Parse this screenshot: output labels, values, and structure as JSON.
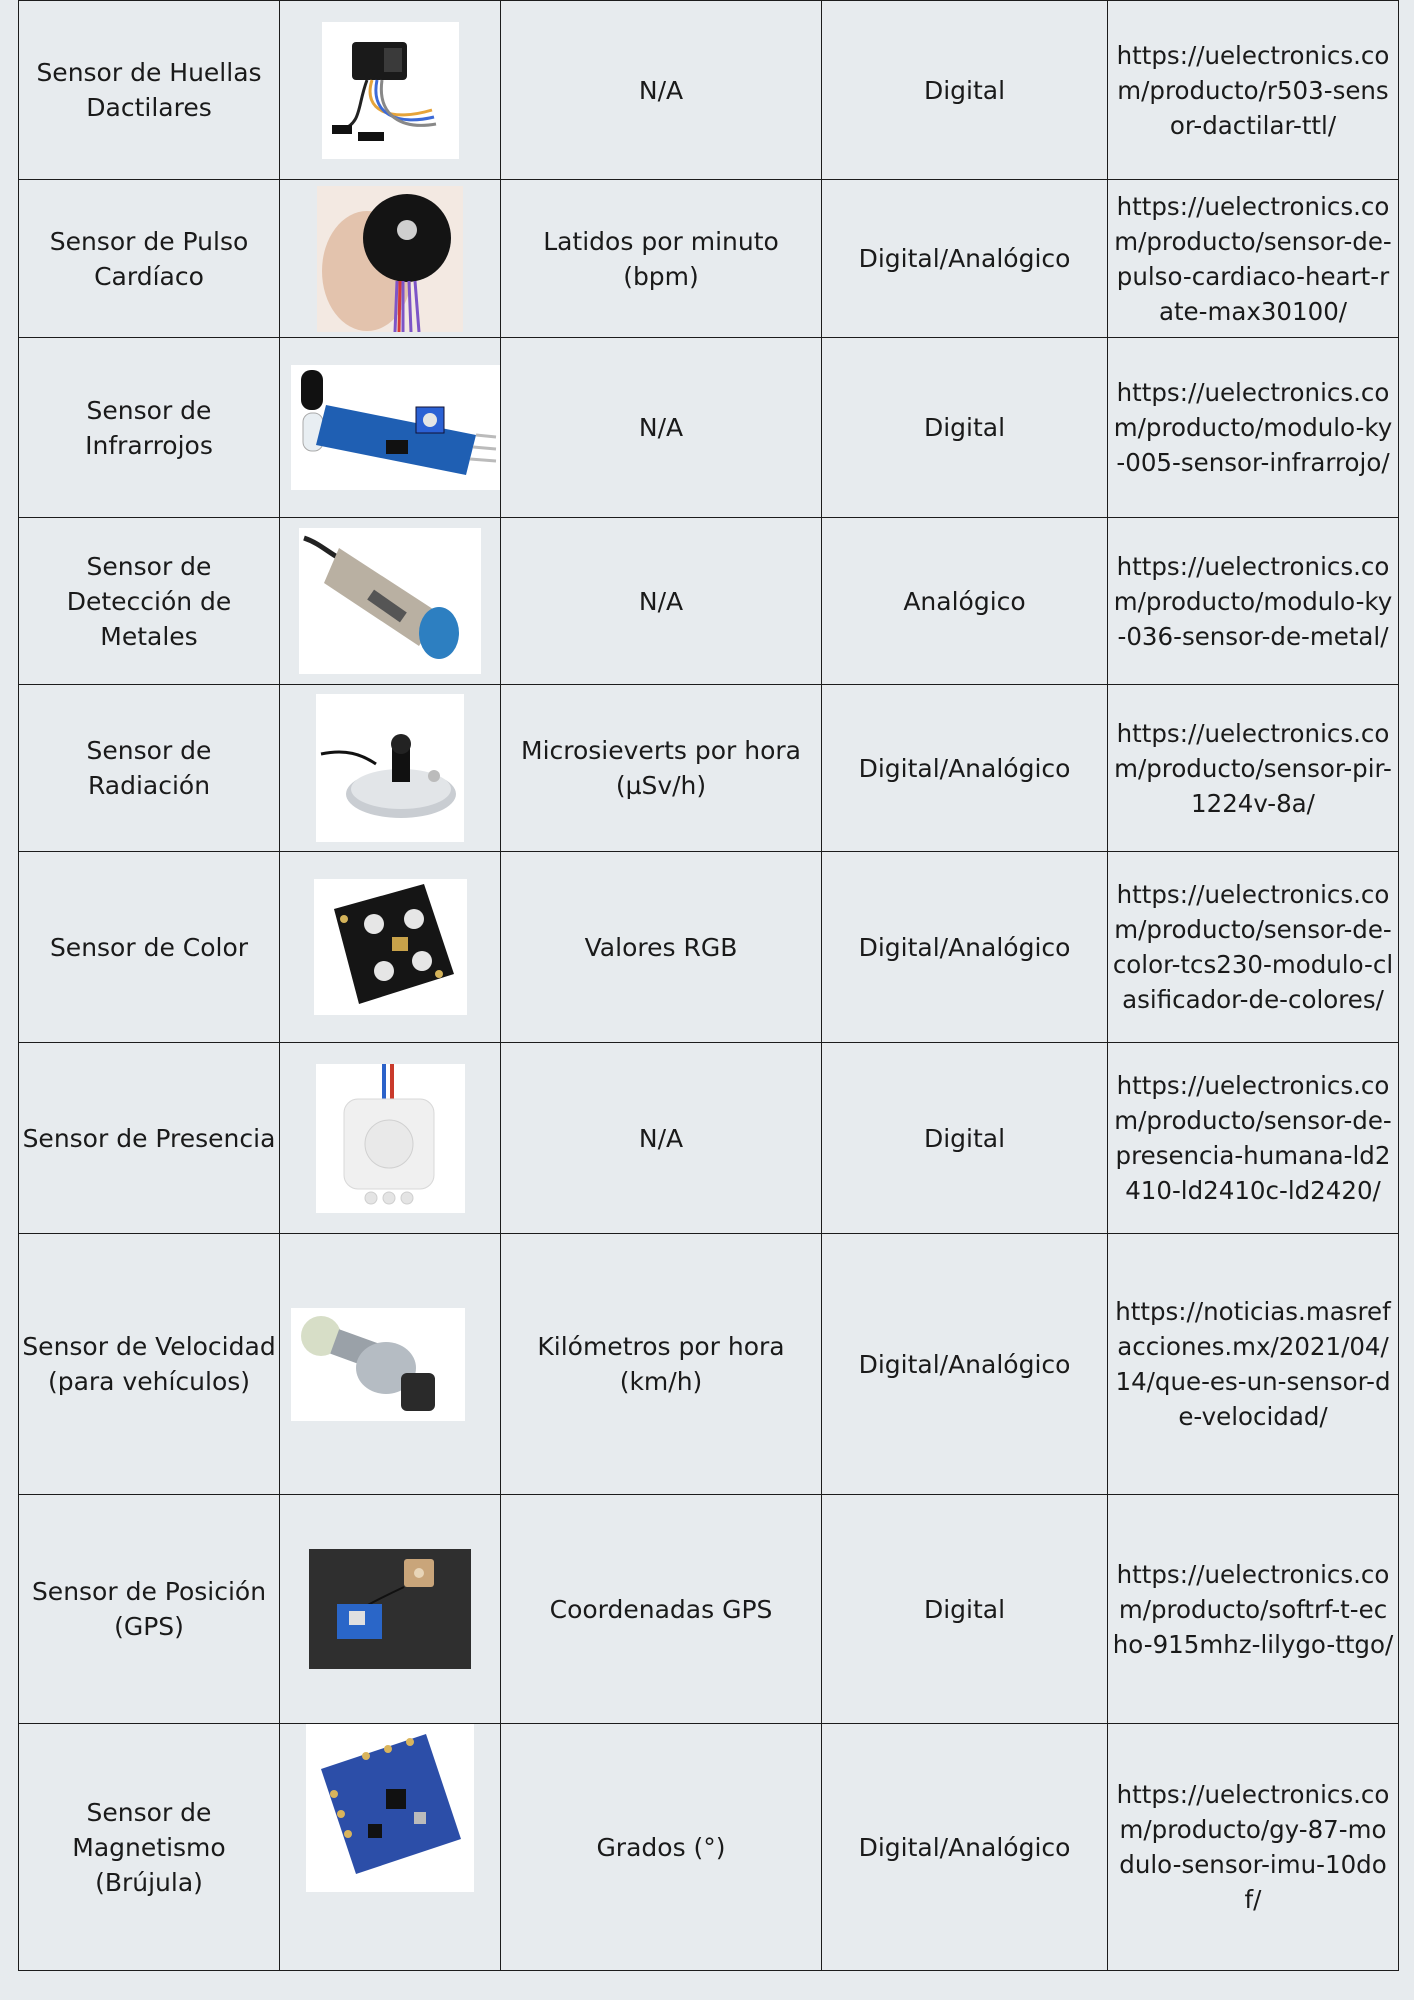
{
  "rows": [
    {
      "sensor": "Sensor de Huellas Dactilares",
      "image": "fingerprint-sensor-image",
      "unit": "N/A",
      "signal": "Digital",
      "url": "https://uelectronics.com/producto/r503-sensor-dactilar-ttl/"
    },
    {
      "sensor": "Sensor de Pulso Cardíaco",
      "image": "pulse-sensor-image",
      "unit": "Latidos por minuto (bpm)",
      "signal": "Digital/Analógico",
      "url": "https://uelectronics.com/producto/sensor-de-pulso-cardiaco-heart-rate-max30100/"
    },
    {
      "sensor": "Sensor de Infrarrojos",
      "image": "infrared-sensor-image",
      "unit": "N/A",
      "signal": "Digital",
      "url": "https://uelectronics.com/producto/modulo-ky-005-sensor-infrarrojo/"
    },
    {
      "sensor": "Sensor de Detección de Metales",
      "image": "metal-detection-sensor-image",
      "unit": "N/A",
      "signal": "Analógico",
      "url": "https://uelectronics.com/producto/modulo-ky-036-sensor-de-metal/"
    },
    {
      "sensor": "Sensor de Radiación",
      "image": "radiation-sensor-image",
      "unit": "Microsieverts por hora (µSv/h)",
      "signal": "Digital/Analógico",
      "url": "https://uelectronics.com/producto/sensor-pir-1224v-8a/"
    },
    {
      "sensor": "Sensor de Color",
      "image": "color-sensor-image",
      "unit": "Valores RGB",
      "signal": "Digital/Analógico",
      "url": "https://uelectronics.com/producto/sensor-de-color-tcs230-modulo-clasificador-de-colores/"
    },
    {
      "sensor": "Sensor de Presencia",
      "image": "presence-sensor-image",
      "unit": "N/A",
      "signal": "Digital",
      "url": "https://uelectronics.com/producto/sensor-de-presencia-humana-ld2410-ld2410c-ld2420/"
    },
    {
      "sensor": "Sensor de Velocidad (para vehículos)",
      "image": "speed-sensor-image",
      "unit": "Kilómetros por hora (km/h)",
      "signal": "Digital/Analógico",
      "url": "https://noticias.masrefacciones.mx/2021/04/14/que-es-un-sensor-de-velocidad/"
    },
    {
      "sensor": "Sensor de Posición (GPS)",
      "image": "gps-sensor-image",
      "unit": "Coordenadas GPS",
      "signal": "Digital",
      "url": "https://uelectronics.com/producto/softrf-t-echo-915mhz-lilygo-ttgo/"
    },
    {
      "sensor": "Sensor de Magnetismo (Brújula)",
      "image": "magnetism-compass-sensor-image",
      "unit": "Grados (°)",
      "signal": "Digital/Analógico",
      "url": "https://uelectronics.com/producto/gy-87-modulo-sensor-imu-10dof/"
    }
  ]
}
